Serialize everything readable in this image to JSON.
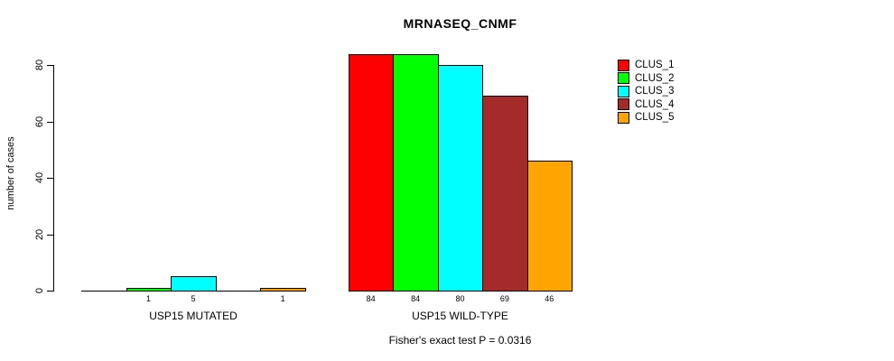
{
  "chart_data": {
    "type": "bar",
    "title": "MRNASEQ_CNMF",
    "ylabel": "number of cases",
    "xlabel": "",
    "ylim": [
      0,
      80
    ],
    "yticks": [
      0,
      20,
      40,
      60,
      80
    ],
    "grid": false,
    "legend_position": "top-right",
    "legend": [
      {
        "name": "CLUS_1",
        "color": "#FF0000"
      },
      {
        "name": "CLUS_2",
        "color": "#00FF00"
      },
      {
        "name": "CLUS_3",
        "color": "#00FFFF"
      },
      {
        "name": "CLUS_4",
        "color": "#A52A2A"
      },
      {
        "name": "CLUS_5",
        "color": "#FFA500"
      }
    ],
    "categories": [
      "CLUS_1",
      "CLUS_2",
      "CLUS_3",
      "CLUS_4",
      "CLUS_5"
    ],
    "groups": [
      {
        "label": "USP15 MUTATED",
        "values": [
          0,
          1,
          5,
          0,
          1
        ],
        "bar_labels": [
          "",
          "1",
          "5",
          "",
          "1"
        ]
      },
      {
        "label": "USP15 WILD-TYPE",
        "values": [
          84,
          84,
          80,
          69,
          46
        ],
        "bar_labels": [
          "84",
          "84",
          "80",
          "69",
          "46"
        ]
      }
    ],
    "footnote": "Fisher's exact test P = 0.0316"
  }
}
